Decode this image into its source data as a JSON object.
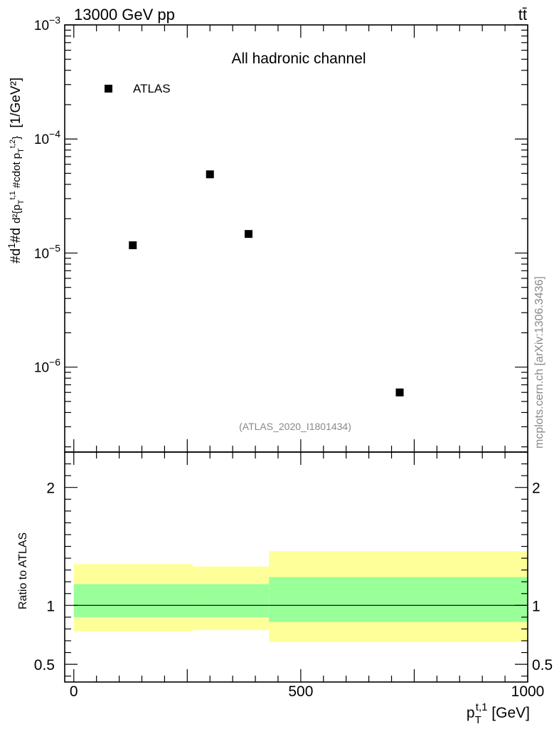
{
  "header": {
    "energy_label": "13000 GeV pp",
    "process_label": "tt̄"
  },
  "watermark": "mcplots.cern.ch [arXiv:1306.3436]",
  "chart_data": [
    {
      "type": "scatter",
      "scale": "log",
      "title": "All hadronic channel",
      "analysis_id": "(ATLAS_2020_I1801434)",
      "ylabel": "#dσ/#d... [1/GeV²]",
      "ylabel_main": "d²σ / d²{p_T^{t,1} #cdot p_T^{t,2}}  [1/GeV²]",
      "ylim": [
        1.8e-07,
        0.001
      ],
      "xlim": [
        -20,
        1000
      ],
      "yticks_major": [
        "10^-6",
        "10^-5",
        "10^-4",
        "10^-3"
      ],
      "legend": {
        "label": "ATLAS",
        "placement": "top-left"
      },
      "series": [
        {
          "name": "ATLAS",
          "color": "#000000",
          "x": [
            130,
            300,
            385,
            718
          ],
          "y": [
            1.17e-05,
            4.9e-05,
            1.47e-05,
            6e-07
          ]
        }
      ]
    },
    {
      "type": "area",
      "ylabel": "Ratio to ATLAS",
      "xlabel": "p_T^{t,1} [GeV]",
      "ylim": [
        0.35,
        2.3
      ],
      "xlim": [
        -20,
        1000
      ],
      "xticks": [
        "0",
        "500",
        "1000"
      ],
      "yticks": [
        "0.5",
        "1",
        "2"
      ],
      "reference_line": 1,
      "bands": [
        {
          "x_from": 0,
          "x_to": 262,
          "inner": [
            0.9,
            1.18
          ],
          "outer": [
            0.78,
            1.35
          ],
          "inner_color": "#99ff99",
          "outer_color": "#ffff99"
        },
        {
          "x_from": 262,
          "x_to": 430,
          "inner": [
            0.9,
            1.18
          ],
          "outer": [
            0.79,
            1.33
          ],
          "inner_color": "#99ff99",
          "outer_color": "#ffff99"
        },
        {
          "x_from": 430,
          "x_to": 1000,
          "inner": [
            0.86,
            1.24
          ],
          "outer": [
            0.69,
            1.46
          ],
          "inner_color": "#99ff99",
          "outer_color": "#ffff99"
        }
      ]
    }
  ]
}
